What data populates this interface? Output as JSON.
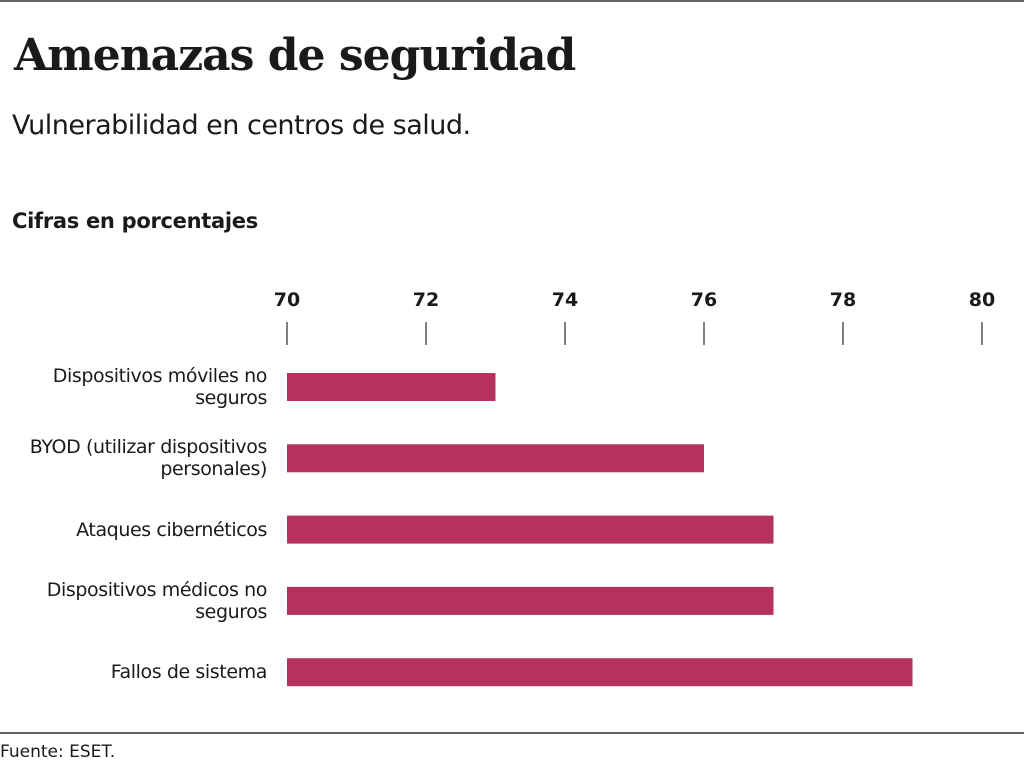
{
  "chart_data": {
    "type": "bar",
    "orientation": "horizontal",
    "title": "Amenazas de seguridad",
    "subtitle": "Vulnerabilidad en centros de salud.",
    "unit_label": "Cifras en porcentajes",
    "source": "Fuente: ESET.",
    "categories": [
      "Dispositivos móviles no seguros",
      "BYOD (utilizar dispositivos personales)",
      "Ataques cibernéticos",
      "Dispositivos médicos no seguros",
      "Fallos de sistema"
    ],
    "values": [
      73,
      76,
      77,
      77,
      79
    ],
    "color": "#b5325e",
    "xlim": [
      70,
      80
    ],
    "xticks": [
      70,
      72,
      74,
      76,
      78,
      80
    ],
    "grid": false
  }
}
